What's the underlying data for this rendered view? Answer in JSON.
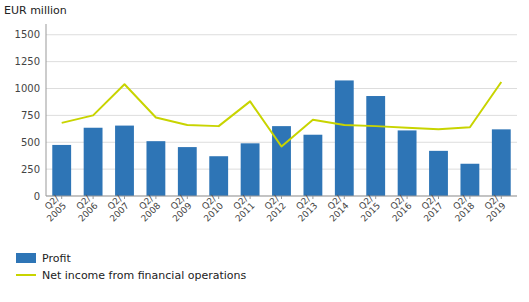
{
  "chart_data": {
    "type": "bar",
    "ylabel": "EUR million",
    "categories": [
      "Q2/\n2005",
      "Q2/\n2006",
      "Q2/\n2007",
      "Q2/\n2008",
      "Q2/\n2009",
      "Q2/\n2010",
      "Q2/\n2011",
      "Q2/\n2012",
      "Q2/\n2013",
      "Q2/\n2014",
      "Q2/\n2015",
      "Q2/\n2016",
      "Q2/\n2017",
      "Q2/\n2018",
      "Q2/\n2019"
    ],
    "series": [
      {
        "name": "Profit",
        "type": "bar",
        "color": "#2E75B6",
        "values": [
          475,
          635,
          655,
          510,
          455,
          370,
          490,
          650,
          570,
          1075,
          930,
          610,
          420,
          300,
          620
        ]
      },
      {
        "name": "Net income from financial operations",
        "type": "line",
        "color": "#C8D400",
        "values": [
          680,
          750,
          1040,
          730,
          660,
          650,
          880,
          460,
          710,
          660,
          650,
          635,
          620,
          640,
          1060
        ]
      }
    ],
    "ylim": [
      0,
      1600
    ],
    "yticks": [
      0,
      250,
      500,
      750,
      1000,
      1250,
      1500
    ],
    "grid": true,
    "legend": "bottom"
  }
}
